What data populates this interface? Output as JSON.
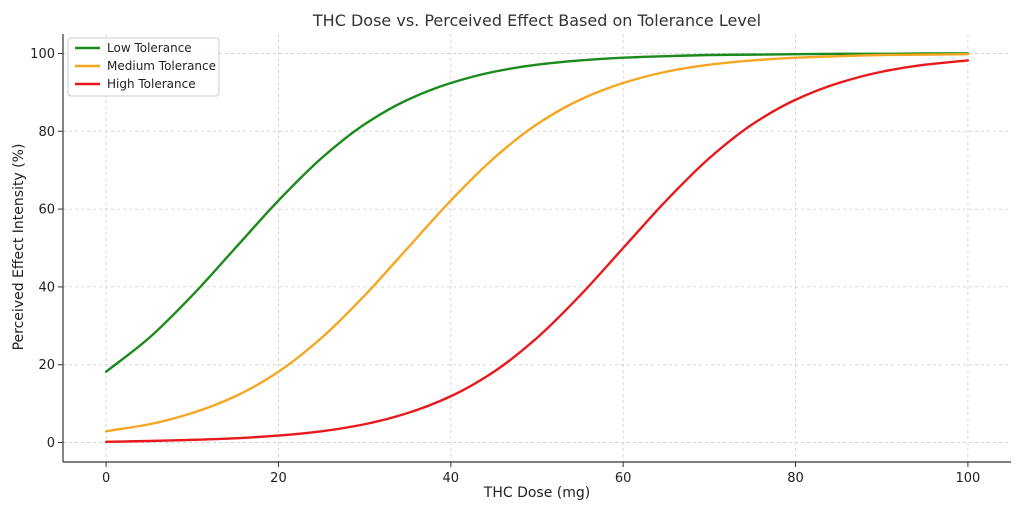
{
  "chart_data": {
    "type": "line",
    "title": "THC Dose vs. Perceived Effect Based on Tolerance Level",
    "xlabel": "THC Dose (mg)",
    "ylabel": "Perceived Effect Intensity (%)",
    "xlim": [
      -5,
      105
    ],
    "ylim": [
      -5,
      105
    ],
    "xticks": [
      0,
      20,
      40,
      60,
      80,
      100
    ],
    "yticks": [
      0,
      20,
      40,
      60,
      80,
      100
    ],
    "grid": true,
    "legend_position": "top-left",
    "x": [
      0,
      5,
      10,
      15,
      20,
      25,
      30,
      35,
      40,
      45,
      50,
      55,
      60,
      65,
      70,
      75,
      80,
      85,
      90,
      95,
      100
    ],
    "series": [
      {
        "name": "Low Tolerance",
        "color": "#1a8a1a",
        "values": [
          18.2,
          26.9,
          37.8,
          50.0,
          62.2,
          73.1,
          81.8,
          88.1,
          92.4,
          95.3,
          97.1,
          98.2,
          98.9,
          99.3,
          99.6,
          99.7,
          99.8,
          99.9,
          99.9,
          100.0,
          100.0
        ]
      },
      {
        "name": "Medium Tolerance",
        "color": "#f5a623",
        "values": [
          2.9,
          4.7,
          7.6,
          11.9,
          18.2,
          26.9,
          37.8,
          50.0,
          62.2,
          73.1,
          81.8,
          88.1,
          92.4,
          95.3,
          97.1,
          98.2,
          98.9,
          99.3,
          99.6,
          99.7,
          99.8
        ]
      },
      {
        "name": "High Tolerance",
        "color": "#e8191c",
        "values": [
          0.2,
          0.4,
          0.7,
          1.1,
          1.8,
          2.9,
          4.7,
          7.6,
          11.9,
          18.2,
          26.9,
          37.8,
          50.0,
          62.2,
          73.1,
          81.8,
          88.1,
          92.4,
          95.3,
          97.1,
          98.2
        ]
      }
    ]
  }
}
